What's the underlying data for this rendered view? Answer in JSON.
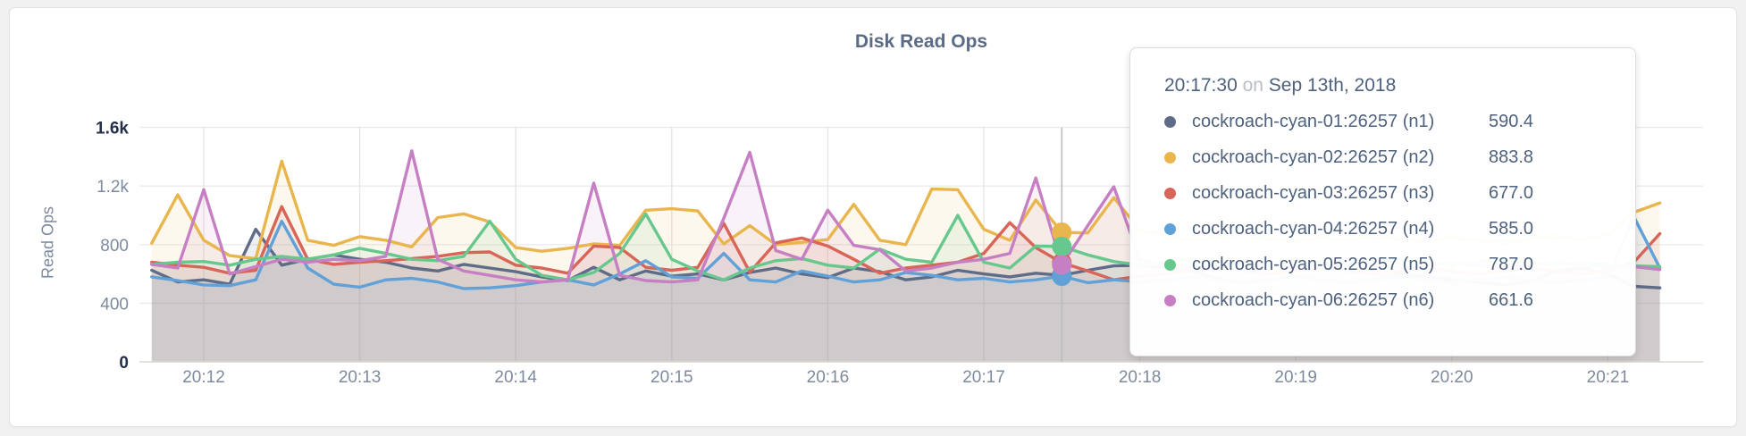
{
  "page_background": "#f1f1f1",
  "chart_data": {
    "type": "line",
    "title": "Disk Read Ops",
    "ylabel": "Read Ops",
    "x_start": "20:11:40",
    "x_step_seconds": 10,
    "x_tick_labels": [
      "20:12",
      "20:13",
      "20:14",
      "20:15",
      "20:16",
      "20:17",
      "20:18",
      "20:19",
      "20:20",
      "20:21"
    ],
    "y_ticks": [
      {
        "label": "0",
        "value": 0
      },
      {
        "label": "400",
        "value": 400
      },
      {
        "label": "800",
        "value": 800
      },
      {
        "label": "1.2k",
        "value": 1200
      },
      {
        "label": "1.6k",
        "value": 1600
      }
    ],
    "ylim": [
      0,
      1600
    ],
    "grid": true,
    "hover_index": 35,
    "hover_time": "20:17:30",
    "series": [
      {
        "name": "cockroach-cyan-01:26257 (n1)",
        "color": "#5f6c87",
        "values": [
          625,
          545,
          560,
          530,
          905,
          660,
          700,
          730,
          700,
          680,
          640,
          620,
          665,
          640,
          615,
          580,
          555,
          645,
          560,
          620,
          585,
          600,
          560,
          610,
          640,
          600,
          575,
          640,
          615,
          560,
          580,
          625,
          600,
          580,
          605,
          590.4,
          625,
          655,
          660,
          640,
          620,
          565,
          540,
          560,
          585,
          560,
          540,
          565,
          600,
          580,
          560,
          545,
          525,
          545,
          620,
          640,
          600,
          515,
          505
        ]
      },
      {
        "name": "cockroach-cyan-02:26257 (n2)",
        "color": "#e9b64e",
        "values": [
          810,
          1140,
          830,
          725,
          705,
          1370,
          830,
          795,
          855,
          830,
          785,
          985,
          1010,
          955,
          780,
          755,
          775,
          805,
          795,
          1035,
          1045,
          1030,
          805,
          930,
          800,
          815,
          835,
          1075,
          830,
          800,
          1180,
          1175,
          905,
          830,
          1105,
          883.8,
          880,
          1120,
          900,
          860,
          830,
          850,
          870,
          840,
          820,
          850,
          830,
          860,
          840,
          820,
          850,
          830,
          810,
          840,
          860,
          830,
          870,
          1020,
          1085
        ]
      },
      {
        "name": "cockroach-cyan-03:26257 (n3)",
        "color": "#d96458",
        "values": [
          680,
          660,
          645,
          605,
          625,
          1060,
          700,
          665,
          680,
          690,
          705,
          720,
          745,
          750,
          660,
          640,
          605,
          790,
          780,
          645,
          625,
          645,
          945,
          612,
          812,
          845,
          790,
          700,
          605,
          640,
          660,
          680,
          740,
          950,
          780,
          677,
          620,
          560,
          585,
          600,
          620,
          640,
          620,
          600,
          620,
          640,
          620,
          600,
          620,
          640,
          620,
          600,
          620,
          640,
          620,
          600,
          620,
          680,
          875
        ]
      },
      {
        "name": "cockroach-cyan-04:26257 (n4)",
        "color": "#61a1d8",
        "values": [
          580,
          555,
          525,
          520,
          560,
          960,
          640,
          530,
          510,
          560,
          570,
          545,
          500,
          505,
          520,
          545,
          560,
          525,
          600,
          690,
          580,
          570,
          740,
          560,
          545,
          620,
          585,
          545,
          560,
          610,
          590,
          560,
          570,
          545,
          560,
          585,
          540,
          560,
          545,
          560,
          580,
          560,
          540,
          560,
          580,
          560,
          540,
          560,
          580,
          560,
          540,
          560,
          580,
          560,
          540,
          560,
          580,
          990,
          640
        ]
      },
      {
        "name": "cockroach-cyan-05:26257 (n5)",
        "color": "#67c88e",
        "values": [
          665,
          680,
          685,
          660,
          700,
          720,
          700,
          730,
          775,
          740,
          700,
          690,
          720,
          960,
          700,
          590,
          560,
          610,
          740,
          1010,
          700,
          620,
          560,
          640,
          690,
          705,
          660,
          640,
          770,
          700,
          680,
          1000,
          680,
          640,
          790,
          787,
          730,
          685,
          660,
          680,
          700,
          680,
          660,
          680,
          700,
          680,
          660,
          680,
          700,
          680,
          660,
          680,
          700,
          680,
          660,
          680,
          660,
          655,
          650
        ]
      },
      {
        "name": "cockroach-cyan-06:26257 (n6)",
        "color": "#c77fc4",
        "values": [
          665,
          640,
          1175,
          600,
          650,
          700,
          680,
          700,
          690,
          720,
          1440,
          700,
          620,
          590,
          560,
          545,
          560,
          1220,
          590,
          555,
          545,
          560,
          980,
          1430,
          760,
          700,
          1035,
          795,
          765,
          620,
          640,
          680,
          700,
          740,
          1255,
          661.6,
          930,
          1195,
          700,
          660,
          640,
          660,
          680,
          660,
          640,
          660,
          680,
          660,
          640,
          660,
          680,
          660,
          640,
          660,
          680,
          660,
          640,
          650,
          630
        ]
      }
    ]
  },
  "tooltip": {
    "time": "20:17:30",
    "separator": "on",
    "date": "Sep 13th, 2018",
    "rows": [
      {
        "label": "cockroach-cyan-01:26257 (n1)",
        "value": "590.4",
        "color": "#5f6c87"
      },
      {
        "label": "cockroach-cyan-02:26257 (n2)",
        "value": "883.8",
        "color": "#e9b64e"
      },
      {
        "label": "cockroach-cyan-03:26257 (n3)",
        "value": "677.0",
        "color": "#d96458"
      },
      {
        "label": "cockroach-cyan-04:26257 (n4)",
        "value": "585.0",
        "color": "#61a1d8"
      },
      {
        "label": "cockroach-cyan-05:26257 (n5)",
        "value": "787.0",
        "color": "#67c88e"
      },
      {
        "label": "cockroach-cyan-06:26257 (n6)",
        "value": "661.6",
        "color": "#c77fc4"
      }
    ]
  }
}
